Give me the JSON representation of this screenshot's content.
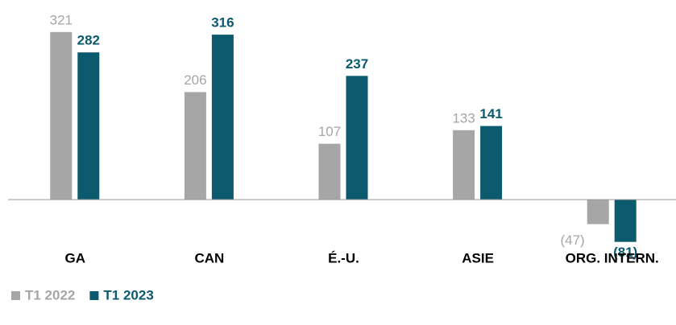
{
  "chart_data": {
    "type": "bar",
    "categories": [
      "GA",
      "CAN",
      "É.-U.",
      "ASIE",
      "ORG. INTERN."
    ],
    "series": [
      {
        "name": "T1 2022",
        "color": "#a6a6a6",
        "values": [
          321,
          206,
          107,
          133,
          -47
        ],
        "value_labels": [
          "321",
          "206",
          "107",
          "133",
          "(47)"
        ]
      },
      {
        "name": "T1 2023",
        "color": "#0b5a6e",
        "values": [
          282,
          316,
          237,
          141,
          -81
        ],
        "value_labels": [
          "282",
          "316",
          "237",
          "141",
          "(81)"
        ]
      }
    ],
    "ylim": [
      -100,
      330
    ],
    "legend": "bottom-left"
  }
}
